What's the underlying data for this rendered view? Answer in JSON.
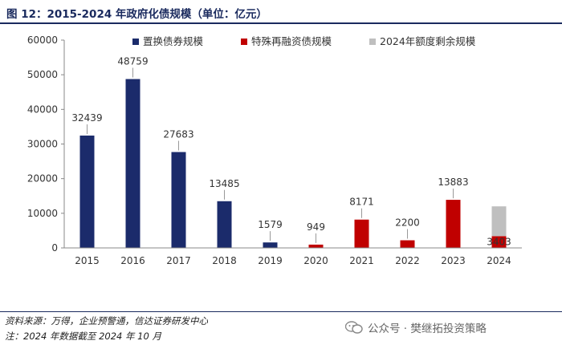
{
  "header": {
    "title": "图 12：2015-2024 年政府化债规模（单位：亿元）"
  },
  "chart_data": {
    "type": "bar",
    "title": "图 12：2015-2024 年政府化债规模（单位：亿元）",
    "categories": [
      "2015",
      "2016",
      "2017",
      "2018",
      "2019",
      "2020",
      "2021",
      "2022",
      "2023",
      "2024"
    ],
    "series": [
      {
        "name": "置换债券规模",
        "color": "#1b2b6b",
        "values": [
          32439,
          48759,
          27683,
          13485,
          1579,
          null,
          null,
          null,
          null,
          null
        ]
      },
      {
        "name": "特殊再融资债规模",
        "color": "#c00000",
        "values": [
          null,
          null,
          null,
          null,
          null,
          949,
          8171,
          2200,
          13883,
          3403
        ]
      },
      {
        "name": "2024年额度剩余规模",
        "color": "#bfbfbf",
        "values": [
          null,
          null,
          null,
          null,
          null,
          null,
          null,
          null,
          null,
          8597
        ]
      }
    ],
    "data_labels": [
      "32439",
      "48759",
      "27683",
      "13485",
      "1579",
      "949",
      "8171",
      "2200",
      "13883",
      "3403"
    ],
    "ylim": [
      0,
      60000
    ],
    "yticks": [
      "0",
      "10000",
      "20000",
      "30000",
      "40000",
      "50000",
      "60000"
    ],
    "stacked": true,
    "legend_position": "top"
  },
  "footer": {
    "source": "资料来源：万得，企业预警通，信达证券研发中心",
    "note": "注：2024 年数据截至 2024 年 10 月",
    "watermark": "公众号 · 樊继拓投资策略"
  }
}
